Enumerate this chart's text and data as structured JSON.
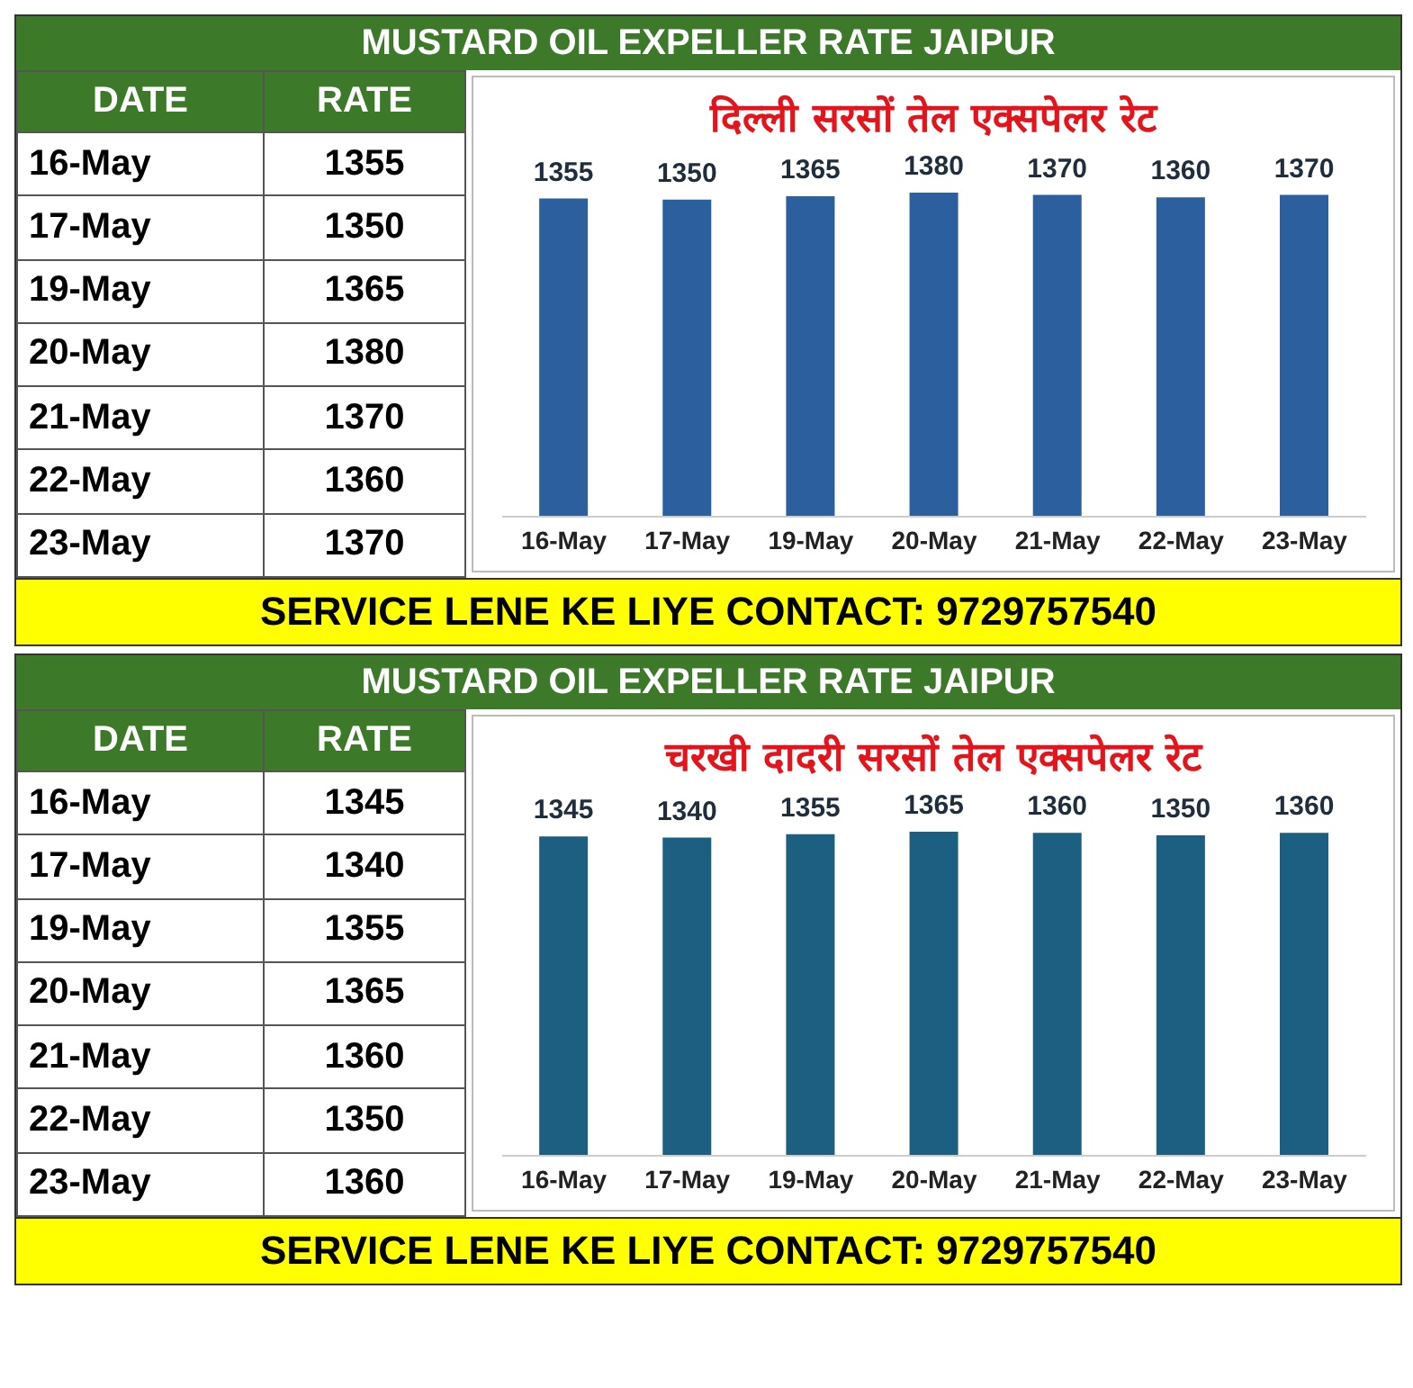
{
  "chart_data": [
    {
      "type": "other",
      "categories": [
        "16-May",
        "17-May",
        "19-May",
        "20-May",
        "21-May",
        "22-May",
        "23-May"
      ],
      "values": [
        1355,
        1350,
        1365,
        1380,
        1370,
        1360,
        1370
      ],
      "data_labels": true,
      "annotations": [
        "DATE",
        "RATE"
      ]
    },
    {
      "type": "bar",
      "title": "दिल्ली सरसों तेल एक्सपेलर रेट",
      "subtitle": "MUSTARD OIL EXPELLER RATE JAIPUR",
      "categories": [
        "16-May",
        "17-May",
        "19-May",
        "20-May",
        "21-May",
        "22-May",
        "23-May"
      ],
      "values": [
        1355,
        1350,
        1365,
        1380,
        1370,
        1360,
        1370
      ],
      "color": "#2b5f9e",
      "data_labels": true,
      "annotations": [
        "SERVICE LENE KE LIYE CONTACT: 9729757540"
      ]
    },
    {
      "type": "other",
      "categories": [
        "16-May",
        "17-May",
        "19-May",
        "20-May",
        "21-May",
        "22-May",
        "23-May"
      ],
      "values": [
        1345,
        1340,
        1355,
        1365,
        1360,
        1350,
        1360
      ],
      "data_labels": true,
      "annotations": [
        "DATE",
        "RATE"
      ]
    },
    {
      "type": "bar",
      "title": "चरखी दादरी सरसों तेल एक्सपेलर रेट",
      "subtitle": "MUSTARD OIL EXPELLER RATE JAIPUR",
      "categories": [
        "16-May",
        "17-May",
        "19-May",
        "20-May",
        "21-May",
        "22-May",
        "23-May"
      ],
      "values": [
        1345,
        1340,
        1355,
        1365,
        1360,
        1350,
        1360
      ],
      "color": "#1d5f80",
      "data_labels": true,
      "annotations": [
        "SERVICE LENE KE LIYE CONTACT: 9729757540"
      ]
    }
  ]
}
